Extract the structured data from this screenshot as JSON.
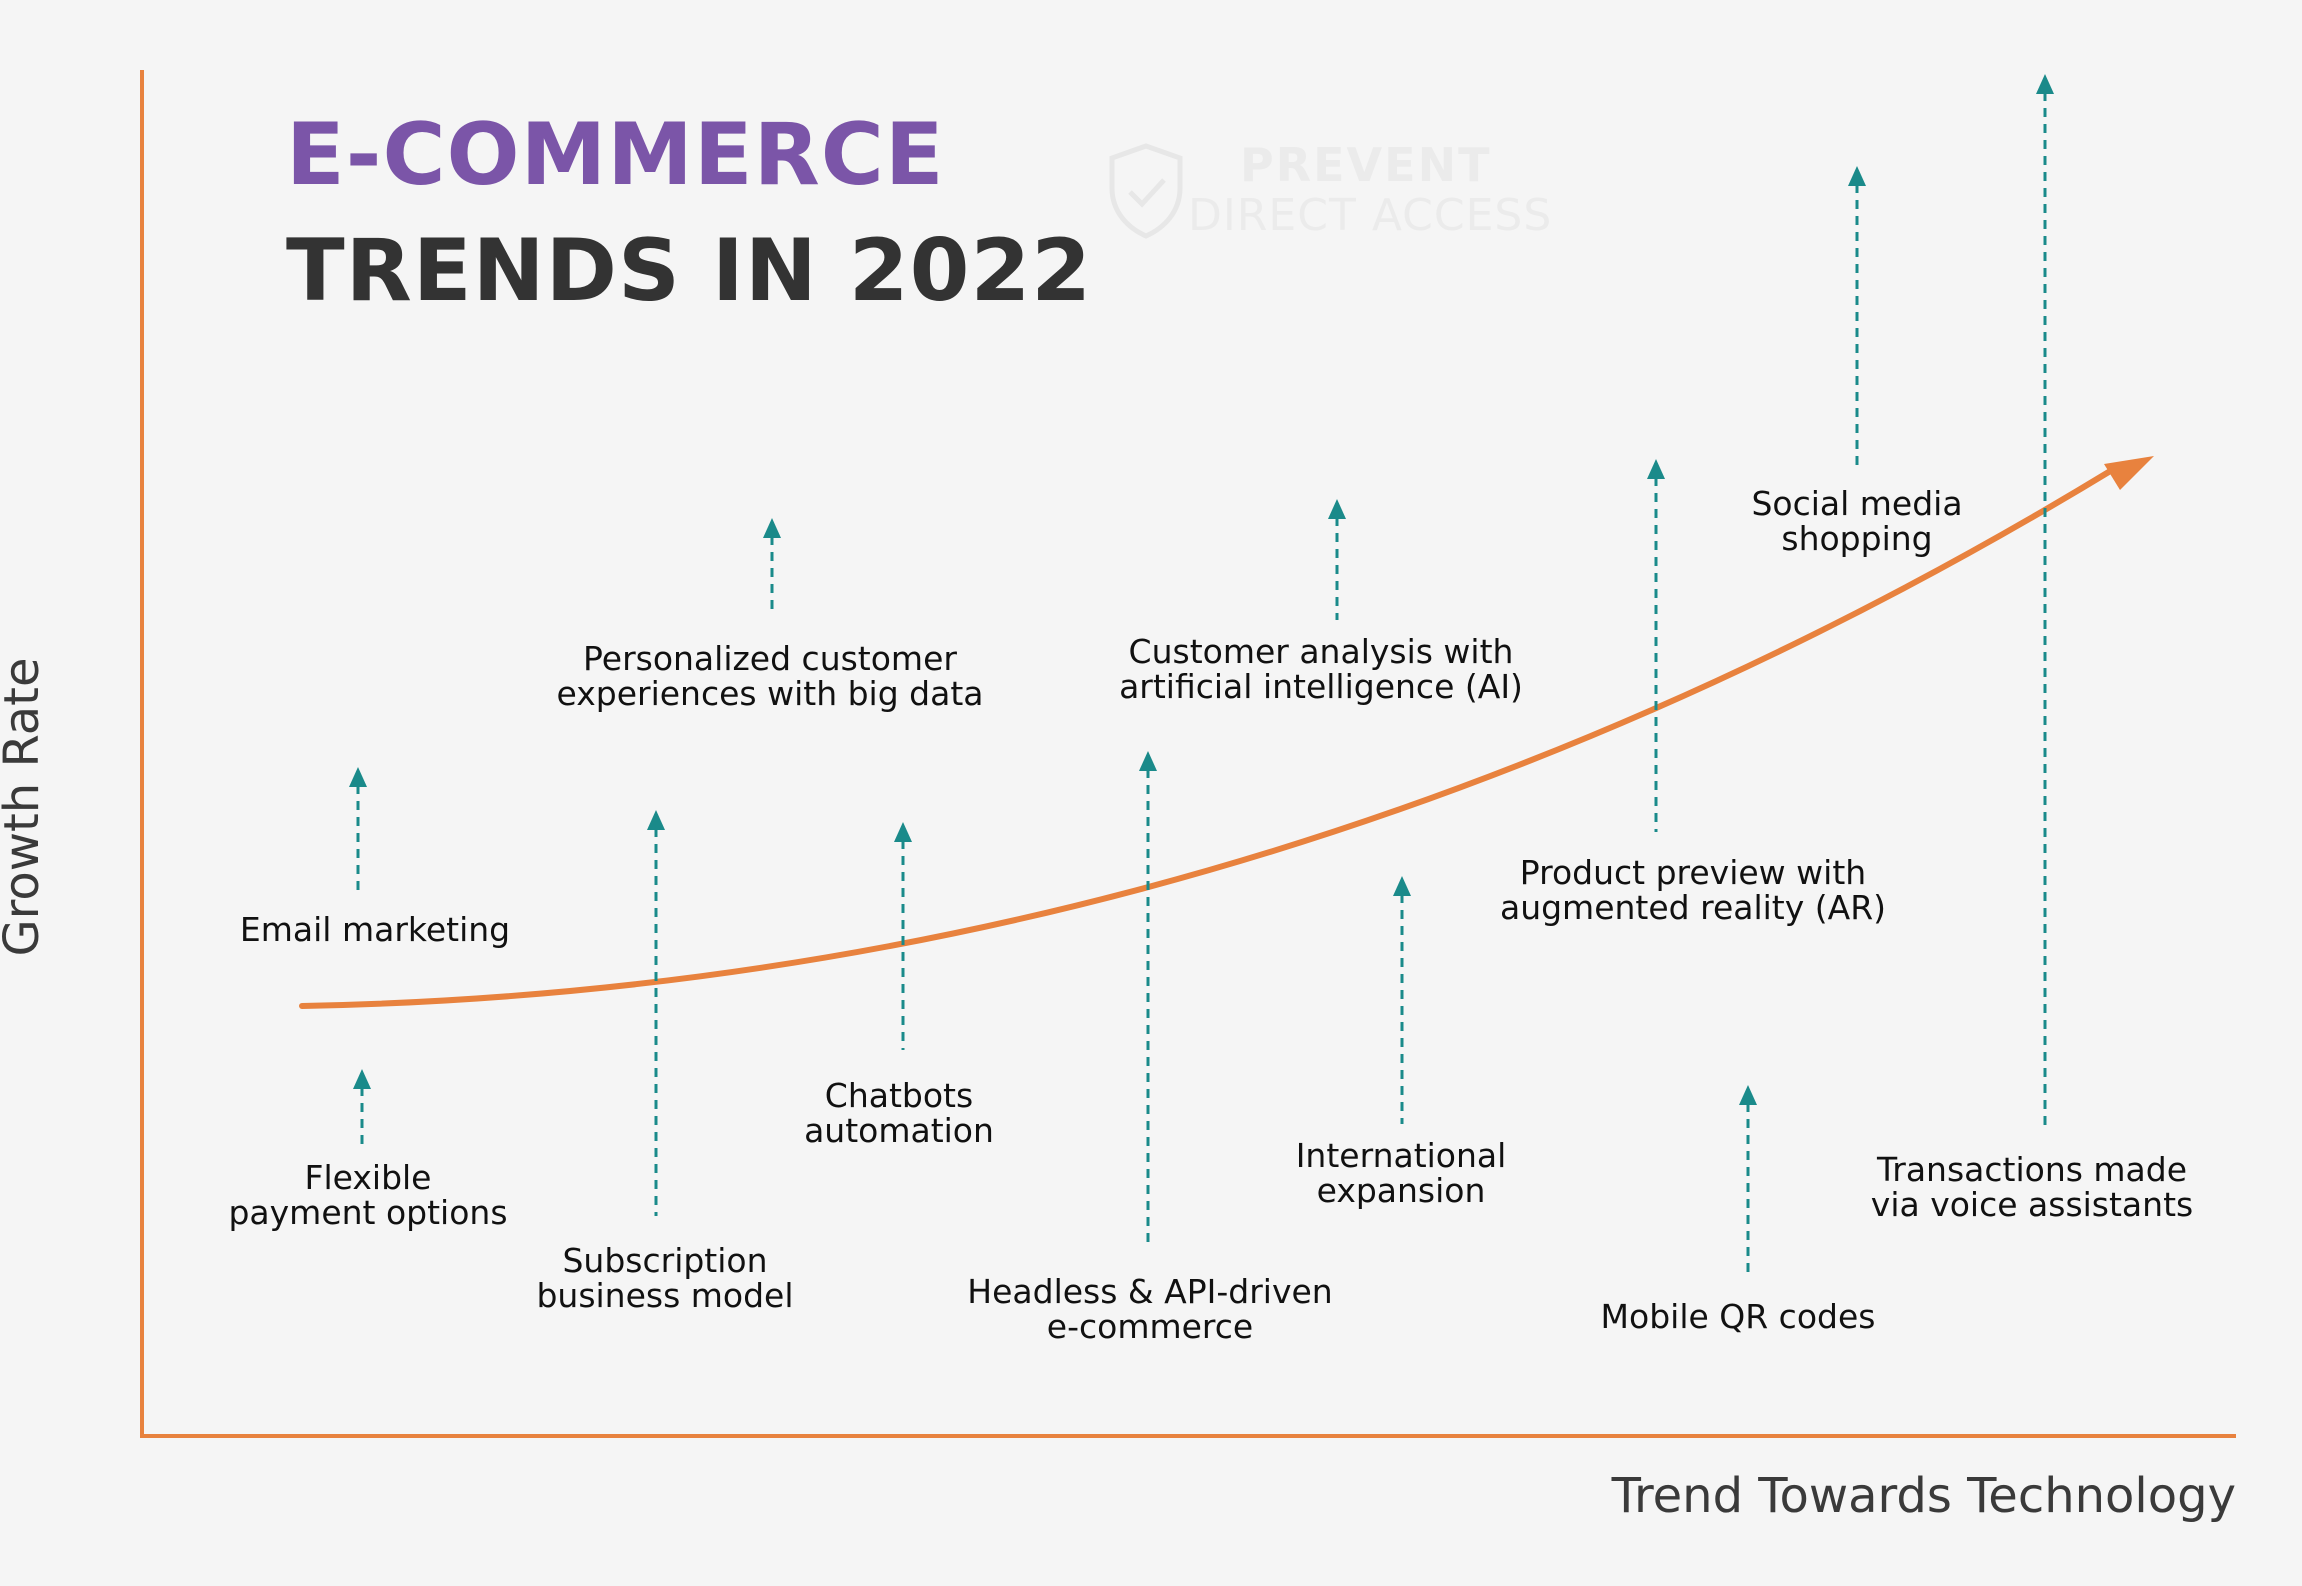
{
  "title": {
    "line1": "E-COMMERCE",
    "line2": "TRENDS IN 2022",
    "line1_color": "#7b55a8",
    "line2_color": "#333333"
  },
  "watermark": {
    "line1": "PREVENT",
    "line2": "DIRECT ACCESS",
    "icon": "shield-check-icon"
  },
  "axes": {
    "x_label": "Trend Towards Technology",
    "y_label": "Growth Rate",
    "axis_color": "#e8823e"
  },
  "curve": {
    "color": "#e8823e",
    "icon": "arrow-head-icon"
  },
  "arrow_color": "#1a8a8a",
  "trends": [
    {
      "lines": [
        "Email marketing"
      ]
    },
    {
      "lines": [
        "Flexible",
        "payment options"
      ]
    },
    {
      "lines": [
        "Personalized customer",
        "experiences with big data"
      ]
    },
    {
      "lines": [
        "Subscription",
        "business model"
      ]
    },
    {
      "lines": [
        "Chatbots",
        "automation"
      ]
    },
    {
      "lines": [
        "Customer analysis with",
        "artificial intelligence (AI)"
      ]
    },
    {
      "lines": [
        "Headless & API-driven",
        "e-commerce"
      ]
    },
    {
      "lines": [
        "International",
        "expansion"
      ]
    },
    {
      "lines": [
        "Product preview with",
        "augmented reality (AR)"
      ]
    },
    {
      "lines": [
        "Mobile QR codes"
      ]
    },
    {
      "lines": [
        "Social media",
        "shopping"
      ]
    },
    {
      "lines": [
        "Transactions made",
        "via voice assistants"
      ]
    }
  ]
}
